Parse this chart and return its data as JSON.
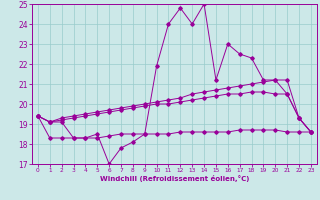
{
  "x": [
    0,
    1,
    2,
    3,
    4,
    5,
    6,
    7,
    8,
    9,
    10,
    11,
    12,
    13,
    14,
    15,
    16,
    17,
    18,
    19,
    20,
    21,
    22,
    23
  ],
  "line1": [
    19.4,
    19.1,
    19.1,
    18.3,
    18.3,
    18.5,
    17.0,
    17.8,
    18.1,
    18.5,
    21.9,
    24.0,
    24.8,
    24.0,
    25.0,
    21.2,
    23.0,
    22.5,
    22.3,
    21.2,
    21.2,
    20.5,
    19.3,
    18.6
  ],
  "line2": [
    19.4,
    19.1,
    19.3,
    19.4,
    19.5,
    19.6,
    19.7,
    19.8,
    19.9,
    20.0,
    20.1,
    20.2,
    20.3,
    20.5,
    20.6,
    20.7,
    20.8,
    20.9,
    21.0,
    21.1,
    21.2,
    21.2,
    19.3,
    18.6
  ],
  "line3": [
    19.4,
    19.1,
    19.2,
    19.3,
    19.4,
    19.5,
    19.6,
    19.7,
    19.8,
    19.9,
    20.0,
    20.0,
    20.1,
    20.2,
    20.3,
    20.4,
    20.5,
    20.5,
    20.6,
    20.6,
    20.5,
    20.5,
    19.3,
    18.6
  ],
  "line4": [
    19.4,
    18.3,
    18.3,
    18.3,
    18.3,
    18.3,
    18.4,
    18.5,
    18.5,
    18.5,
    18.5,
    18.5,
    18.6,
    18.6,
    18.6,
    18.6,
    18.6,
    18.7,
    18.7,
    18.7,
    18.7,
    18.6,
    18.6,
    18.6
  ],
  "line_color": "#990099",
  "bg_color": "#cce8e8",
  "grid_color": "#99cccc",
  "xlabel": "Windchill (Refroidissement éolien,°C)",
  "ylim": [
    17,
    25
  ],
  "xlim": [
    -0.5,
    23.5
  ],
  "yticks": [
    17,
    18,
    19,
    20,
    21,
    22,
    23,
    24,
    25
  ],
  "xticks": [
    0,
    1,
    2,
    3,
    4,
    5,
    6,
    7,
    8,
    9,
    10,
    11,
    12,
    13,
    14,
    15,
    16,
    17,
    18,
    19,
    20,
    21,
    22,
    23
  ],
  "xlabel_fontsize": 5.0,
  "ytick_fontsize": 5.5,
  "xtick_fontsize": 4.2
}
